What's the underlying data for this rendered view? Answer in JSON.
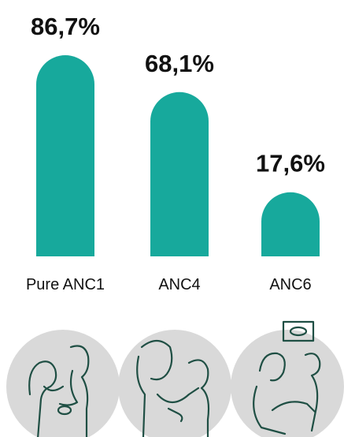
{
  "chart_data": {
    "type": "bar",
    "categories": [
      "Pure ANC1",
      "ANC4",
      "ANC6"
    ],
    "values": [
      86.7,
      68.1,
      17.6
    ],
    "value_labels": [
      "86,7%",
      "68,1%",
      "17,6%"
    ],
    "color": "#17a99c"
  }
}
